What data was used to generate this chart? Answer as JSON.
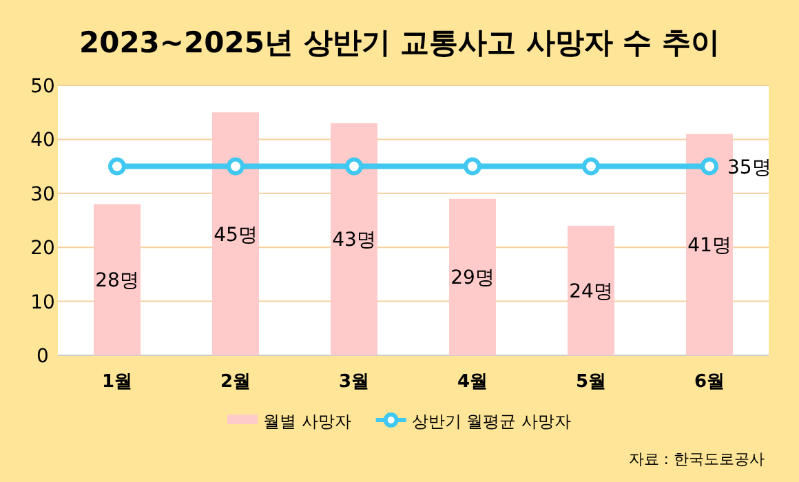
{
  "chart_data": {
    "type": "bar",
    "title": "2023~2025년 상반기 교통사고 사망자 수 추이",
    "categories": [
      "1월",
      "2월",
      "3월",
      "4월",
      "5월",
      "6월"
    ],
    "series": [
      {
        "name": "월별 사망자",
        "color": "#ffcaca",
        "values": [
          28,
          45,
          43,
          29,
          24,
          41
        ],
        "value_labels": [
          "28명",
          "45명",
          "43명",
          "29명",
          "24명",
          "41명"
        ]
      },
      {
        "name": "상반기 월평균 사망자",
        "type": "line",
        "color": "#40c8f0",
        "values": [
          35,
          35,
          35,
          35,
          35,
          35
        ],
        "value_labels": [
          null,
          null,
          null,
          null,
          null,
          "35명"
        ]
      }
    ],
    "ylim": [
      0,
      50
    ],
    "yticks": [
      0,
      10,
      20,
      30,
      40,
      50
    ],
    "grid": "y",
    "legend": "bottom",
    "marker": "circle",
    "annotations": [
      "자료 : 한국도로공사"
    ]
  }
}
